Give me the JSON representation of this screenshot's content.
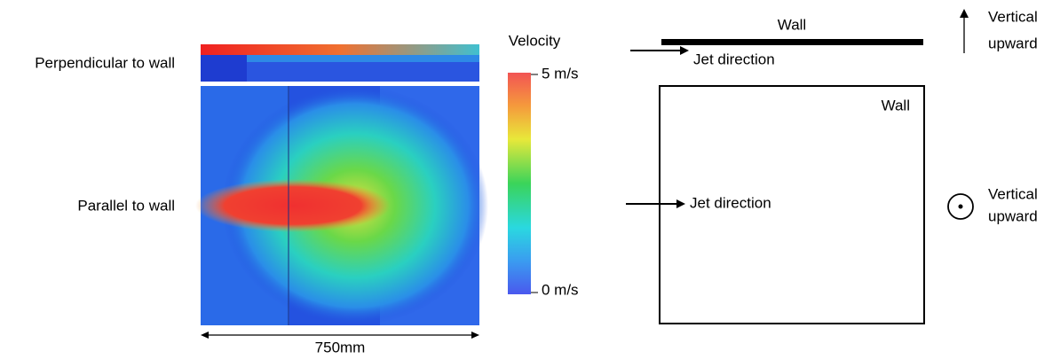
{
  "left_panel": {
    "rows": [
      {
        "label": "Perpendicular to wall"
      },
      {
        "label": "Parallel to wall"
      }
    ],
    "scale_label": "750mm"
  },
  "colorbar": {
    "title": "Velocity",
    "max_label": "5 m/s",
    "min_label": "0 m/s"
  },
  "side_view": {
    "wall_label": "Wall",
    "jet_label": "Jet direction",
    "direction_label": [
      "Vertical",
      "upward"
    ]
  },
  "top_view": {
    "wall_label": "Wall",
    "jet_label": "Jet direction",
    "direction_label": [
      "Vertical",
      "upward"
    ]
  }
}
